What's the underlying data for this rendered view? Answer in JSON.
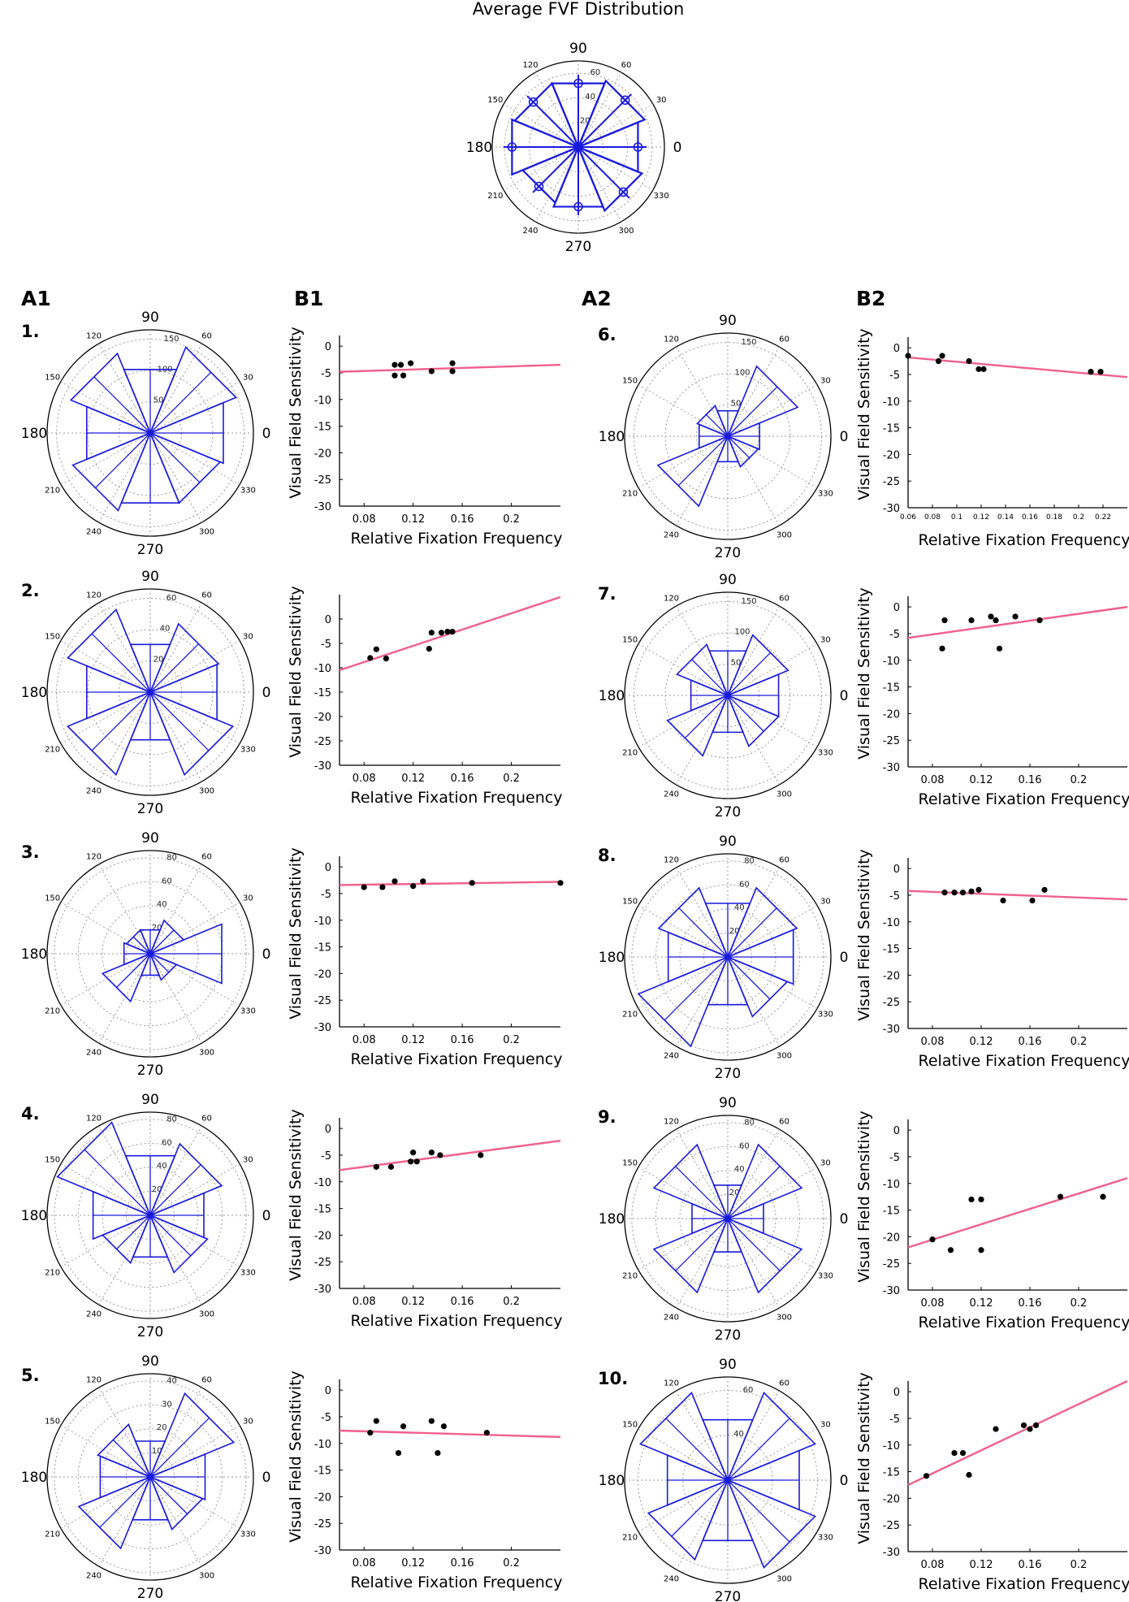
{
  "figure": {
    "average_title": "Average FVF Distribution",
    "column_labels": [
      "A1",
      "B1",
      "A2",
      "B2"
    ]
  },
  "chart_data": {
    "average": {
      "type": "polar-rose",
      "title": "Average FVF Distribution",
      "angle_labels": [
        "90",
        "60",
        "30",
        "0",
        "330",
        "300",
        "270",
        "240",
        "210",
        "180",
        "150",
        "120"
      ],
      "radial_ticks": [
        "60",
        "40",
        "20"
      ],
      "rmax": 60,
      "sectors_deg": [
        0,
        45,
        90,
        135,
        180,
        225,
        270,
        315
      ],
      "values": [
        45,
        50,
        48,
        48,
        50,
        42,
        45,
        48
      ],
      "error": 5
    },
    "participants": [
      {
        "label": "1.",
        "rose": {
          "rmax": 150,
          "radial_ticks": [
            "150",
            "100",
            "50"
          ],
          "angle_labels": [
            "90",
            "60",
            "30",
            "0",
            "330",
            "300",
            "270",
            "240",
            "210",
            "180",
            "150",
            "120"
          ],
          "values": [
            115,
            135,
            100,
            125,
            100,
            122,
            110,
            110
          ]
        },
        "scatter": {
          "x": [
            0.105,
            0.105,
            0.11,
            0.112,
            0.118,
            0.135,
            0.152,
            0.152
          ],
          "y": [
            -3.5,
            -5.5,
            -3.5,
            -5.5,
            -3.2,
            -4.7,
            -3.2,
            -4.7
          ],
          "fit_start": -4.8,
          "fit_end": -3.5,
          "xlim": [
            0.06,
            0.24
          ],
          "ylim": [
            -30,
            2
          ],
          "xticks": [
            "0.08",
            "0.12",
            "0.16",
            "0.2"
          ],
          "yticks": [
            "0",
            "-5",
            "-10",
            "-15",
            "-20",
            "-25",
            "-30"
          ],
          "xlabel": "Relative Fixation Frequency",
          "ylabel": "Visual Field Sensitivity"
        }
      },
      {
        "label": "2.",
        "rose": {
          "rmax": 60,
          "radial_ticks": [
            "60",
            "40",
            "20"
          ],
          "angle_labels": [
            "90",
            "60",
            "30",
            "0",
            "330",
            "300",
            "270",
            "240",
            "210",
            "180",
            "150",
            "120"
          ],
          "values": [
            42,
            43,
            30,
            52,
            40,
            52,
            30,
            52
          ]
        },
        "scatter": {
          "x": [
            0.085,
            0.09,
            0.098,
            0.133,
            0.135,
            0.143,
            0.148,
            0.152
          ],
          "y": [
            -8,
            -6.2,
            -8.1,
            -6.1,
            -2.8,
            -2.8,
            -2.6,
            -2.6
          ],
          "fit_start": -10.5,
          "fit_end": 4.5,
          "xlim": [
            0.06,
            0.24
          ],
          "ylim": [
            -30,
            5
          ],
          "xticks": [
            "0.08",
            "0.12",
            "0.16",
            "0.2"
          ],
          "yticks": [
            "0",
            "-5",
            "-10",
            "-15",
            "-20",
            "-25",
            "-30"
          ],
          "xlabel": "Relative Fixation Frequency",
          "ylabel": "Visual Field Sensitivity"
        }
      },
      {
        "label": "3.",
        "rose": {
          "rmax": 80,
          "radial_ticks": [
            "80",
            "60",
            "40",
            "20"
          ],
          "angle_labels": [
            "90",
            "60",
            "30",
            "0",
            "330",
            "300",
            "270",
            "240",
            "210",
            "180",
            "150",
            "120"
          ],
          "values": [
            60,
            28,
            20,
            20,
            22,
            40,
            18,
            22
          ]
        },
        "scatter": {
          "x": [
            0.08,
            0.095,
            0.105,
            0.12,
            0.128,
            0.168,
            0.24
          ],
          "y": [
            -3.8,
            -3.8,
            -2.7,
            -3.6,
            -2.7,
            -3,
            -3
          ],
          "fit_start": -3.4,
          "fit_end": -2.8,
          "xlim": [
            0.06,
            0.24
          ],
          "ylim": [
            -30,
            2
          ],
          "xticks": [
            "0.08",
            "0.12",
            "0.16",
            "0.2"
          ],
          "yticks": [
            "0",
            "-5",
            "-10",
            "-15",
            "-20",
            "-25",
            "-30"
          ],
          "xlabel": "Relative Fixation Frequency",
          "ylabel": "Visual Field Sensitivity"
        }
      },
      {
        "label": "4.",
        "rose": {
          "rmax": 80,
          "radial_ticks": [
            "80",
            "60",
            "40",
            "20"
          ],
          "angle_labels": [
            "90",
            "60",
            "30",
            "0",
            "330",
            "300",
            "270",
            "240",
            "210",
            "180",
            "150",
            "120"
          ],
          "values": [
            45,
            60,
            50,
            78,
            48,
            40,
            35,
            48
          ]
        },
        "scatter": {
          "x": [
            0.09,
            0.102,
            0.118,
            0.12,
            0.123,
            0.135,
            0.142,
            0.175
          ],
          "y": [
            -7.2,
            -7.2,
            -6.2,
            -4.5,
            -6.2,
            -4.5,
            -5,
            -5
          ],
          "fit_start": -7.8,
          "fit_end": -2.3,
          "xlim": [
            0.06,
            0.24
          ],
          "ylim": [
            -30,
            2
          ],
          "xticks": [
            "0.08",
            "0.12",
            "0.16",
            "0.2"
          ],
          "yticks": [
            "0",
            "-5",
            "-10",
            "-15",
            "-20",
            "-25",
            "-30"
          ],
          "xlabel": "Relative Fixation Frequency",
          "ylabel": "Visual Field Sensitivity"
        }
      },
      {
        "label": "5.",
        "rose": {
          "rmax": 40,
          "radial_ticks": [
            "40",
            "30",
            "20",
            "10"
          ],
          "angle_labels": [
            "90",
            "60",
            "30",
            "0",
            "330",
            "300",
            "270",
            "240",
            "210",
            "180",
            "150",
            "120"
          ],
          "values": [
            23,
            35,
            15,
            22,
            21,
            30,
            18,
            22
          ]
        },
        "scatter": {
          "x": [
            0.085,
            0.09,
            0.108,
            0.112,
            0.135,
            0.14,
            0.145,
            0.18
          ],
          "y": [
            -8,
            -5.8,
            -11.8,
            -6.8,
            -5.8,
            -11.8,
            -6.8,
            -8
          ],
          "fit_start": -7.6,
          "fit_end": -8.8,
          "xlim": [
            0.06,
            0.24
          ],
          "ylim": [
            -30,
            2
          ],
          "xticks": [
            "0.08",
            "0.12",
            "0.16",
            "0.2"
          ],
          "yticks": [
            "0",
            "-5",
            "-10",
            "-15",
            "-20",
            "-25",
            "-30"
          ],
          "xlabel": "Relative Fixation Frequency",
          "ylabel": "Visual Field Sensitivity"
        }
      },
      {
        "label": "6.",
        "rose": {
          "rmax": 150,
          "radial_ticks": [
            "150",
            "100",
            "50"
          ],
          "angle_labels": [
            "90",
            "60",
            "30",
            "0",
            "330",
            "300",
            "270",
            "240",
            "210",
            "180",
            "150",
            "120"
          ],
          "values": [
            50,
            110,
            40,
            48,
            45,
            110,
            40,
            48
          ]
        },
        "scatter": {
          "x": [
            0.06,
            0.085,
            0.088,
            0.11,
            0.118,
            0.122,
            0.21,
            0.218
          ],
          "y": [
            -1.5,
            -2.5,
            -1.5,
            -2.5,
            -4,
            -4,
            -4.5,
            -4.5
          ],
          "fit_start": -1.8,
          "fit_end": -5.5,
          "xlim": [
            0.06,
            0.24
          ],
          "ylim": [
            -30,
            2
          ],
          "xticks": [
            "0.06",
            "0.08",
            "0.1",
            "0.12",
            "0.14",
            "0.16",
            "0.18",
            "0.2",
            "0.22"
          ],
          "yticks": [
            "0",
            "-5",
            "-10",
            "-15",
            "-20",
            "-25",
            "-30"
          ],
          "xlabel": "Relative Fixation Frequency",
          "ylabel": "Visual Field Sensitivity"
        }
      },
      {
        "label": "7.",
        "rose": {
          "rmax": 150,
          "radial_ticks": [
            "150",
            "100",
            "50"
          ],
          "angle_labels": [
            "90",
            "60",
            "30",
            "0",
            "330",
            "300",
            "270",
            "240",
            "210",
            "180",
            "150",
            "120"
          ],
          "values": [
            80,
            95,
            70,
            80,
            58,
            95,
            58,
            80
          ]
        },
        "scatter": {
          "x": [
            0.088,
            0.09,
            0.112,
            0.128,
            0.132,
            0.135,
            0.148,
            0.168
          ],
          "y": [
            -7.8,
            -2.5,
            -2.5,
            -1.8,
            -2.5,
            -7.8,
            -1.8,
            -2.5
          ],
          "fit_start": -5.8,
          "fit_end": 0,
          "xlim": [
            0.06,
            0.24
          ],
          "ylim": [
            -30,
            2
          ],
          "xticks": [
            "0.08",
            "0.12",
            "0.16",
            "0.2"
          ],
          "yticks": [
            "0",
            "-5",
            "-10",
            "-15",
            "-20",
            "-25",
            "-30"
          ],
          "xlabel": "Relative Fixation Frequency",
          "ylabel": "Visual Field Sensitivity"
        }
      },
      {
        "label": "8.",
        "rose": {
          "rmax": 80,
          "radial_ticks": [
            "80",
            "60",
            "40",
            "20"
          ],
          "angle_labels": [
            "90",
            "60",
            "30",
            "0",
            "330",
            "300",
            "270",
            "240",
            "210",
            "180",
            "150",
            "120"
          ],
          "values": [
            55,
            58,
            45,
            58,
            50,
            75,
            40,
            50
          ]
        },
        "scatter": {
          "x": [
            0.09,
            0.098,
            0.105,
            0.112,
            0.118,
            0.138,
            0.162,
            0.172
          ],
          "y": [
            -4.5,
            -4.5,
            -4.5,
            -4.3,
            -4,
            -6,
            -6,
            -4
          ],
          "fit_start": -4.2,
          "fit_end": -5.8,
          "xlim": [
            0.06,
            0.24
          ],
          "ylim": [
            -30,
            2
          ],
          "xticks": [
            "0.08",
            "0.12",
            "0.16",
            "0.2"
          ],
          "yticks": [
            "0",
            "-5",
            "-10",
            "-15",
            "-20",
            "-25",
            "-30"
          ],
          "xlabel": "Relative Fixation Frequency",
          "ylabel": "Visual Field Sensitivity"
        }
      },
      {
        "label": "9.",
        "rose": {
          "rmax": 80,
          "radial_ticks": [
            "80",
            "60",
            "40",
            "20"
          ],
          "angle_labels": [
            "90",
            "60",
            "30",
            "0",
            "330",
            "300",
            "270",
            "240",
            "210",
            "180",
            "150",
            "120"
          ],
          "values": [
            30,
            62,
            28,
            62,
            30,
            62,
            28,
            62
          ]
        },
        "scatter": {
          "x": [
            0.08,
            0.095,
            0.112,
            0.12,
            0.12,
            0.185,
            0.22
          ],
          "y": [
            -20.5,
            -22.5,
            -13,
            -13,
            -22.5,
            -12.5,
            -12.5
          ],
          "fit_start": -22,
          "fit_end": -9,
          "xlim": [
            0.06,
            0.24
          ],
          "ylim": [
            -30,
            2
          ],
          "xticks": [
            "0.08",
            "0.12",
            "0.16",
            "0.2"
          ],
          "yticks": [
            "0",
            "-5",
            "-10",
            "-15",
            "-20",
            "-25",
            "-30"
          ],
          "xlabel": "Relative Fixation Frequency",
          "ylabel": "Visual Field Sensitivity"
        }
      },
      {
        "label": "10.",
        "rose": {
          "rmax": 60,
          "radial_ticks": [
            "60",
            "40"
          ],
          "angle_labels": [
            "90",
            "60",
            "30",
            "0",
            "330",
            "300",
            "270",
            "240",
            "210",
            "180",
            "150",
            "120"
          ],
          "values": [
            45,
            55,
            38,
            55,
            38,
            50,
            38,
            55
          ]
        },
        "scatter": {
          "x": [
            0.075,
            0.098,
            0.105,
            0.11,
            0.132,
            0.155,
            0.16,
            0.165
          ],
          "y": [
            -15.8,
            -11.5,
            -11.5,
            -15.6,
            -7,
            -6.3,
            -7,
            -6.3
          ],
          "fit_start": -17.5,
          "fit_end": 2,
          "xlim": [
            0.06,
            0.24
          ],
          "ylim": [
            -30,
            2
          ],
          "xticks": [
            "0.08",
            "0.12",
            "0.16",
            "0.2"
          ],
          "yticks": [
            "0",
            "-5",
            "-10",
            "-15",
            "-20",
            "-25",
            "-30"
          ],
          "xlabel": "Relative Fixation Frequency",
          "ylabel": "Visual Field Sensitivity"
        }
      }
    ]
  },
  "colors": {
    "rose": "#1a1adc",
    "fit": "#f0608c",
    "points": "#000000",
    "grid": "#9a9a9a"
  }
}
